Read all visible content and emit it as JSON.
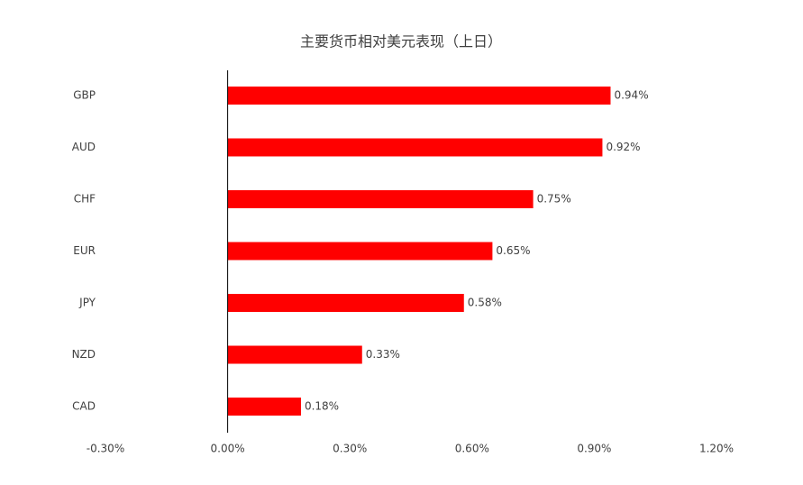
{
  "chart_data": {
    "type": "bar",
    "orientation": "horizontal",
    "title": "主要货币相对美元表现（上日）",
    "categories": [
      "GBP",
      "AUD",
      "CHF",
      "EUR",
      "JPY",
      "NZD",
      "CAD"
    ],
    "values": [
      0.94,
      0.92,
      0.75,
      0.65,
      0.58,
      0.33,
      0.18
    ],
    "value_labels": [
      "0.94%",
      "0.92%",
      "0.75%",
      "0.65%",
      "0.58%",
      "0.33%",
      "0.18%"
    ],
    "color": "#ff0000",
    "xlim": [
      -0.3,
      1.2
    ],
    "xticks": [
      {
        "value": -0.3,
        "label": "-0.30%"
      },
      {
        "value": 0,
        "label": "0.00%"
      },
      {
        "value": 0.3,
        "label": "0.30%"
      },
      {
        "value": 0.6,
        "label": "0.60%"
      },
      {
        "value": 0.9,
        "label": "0.90%"
      },
      {
        "value": 1.2,
        "label": "1.20%"
      }
    ],
    "grid": false
  }
}
